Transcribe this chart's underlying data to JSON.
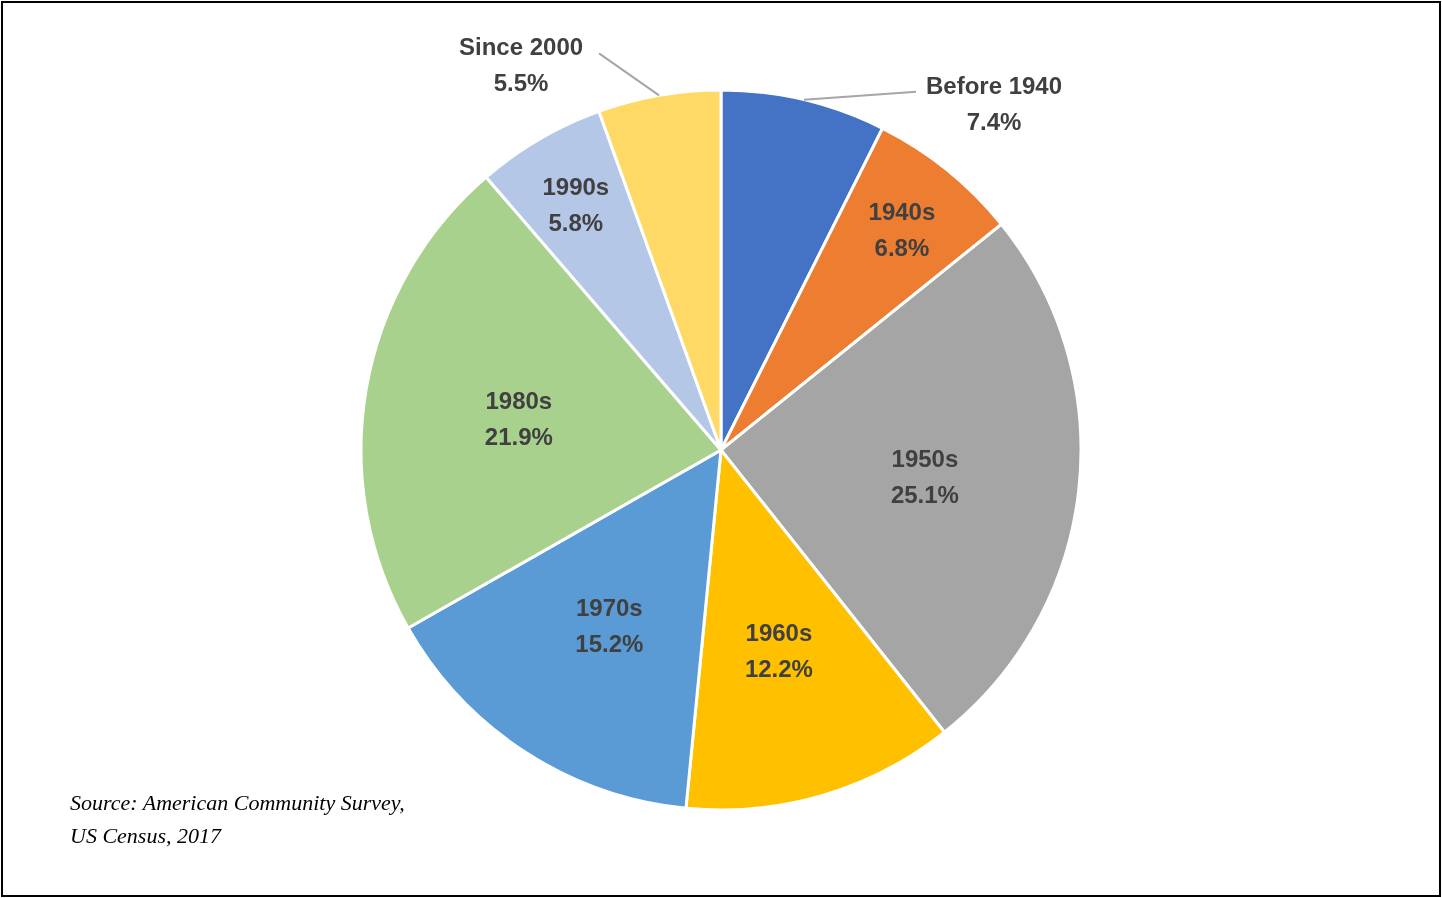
{
  "chart_data": {
    "type": "pie",
    "categories": [
      "Before 1940",
      "1940s",
      "1950s",
      "1960s",
      "1970s",
      "1980s",
      "1990s",
      "Since 2000"
    ],
    "values": [
      7.4,
      6.8,
      25.1,
      12.2,
      15.2,
      21.9,
      5.8,
      5.5
    ],
    "value_labels": [
      "7.4%",
      "6.8%",
      "25.1%",
      "12.2%",
      "15.2%",
      "21.9%",
      "5.8%",
      "5.5%"
    ],
    "colors": [
      "#4472c4",
      "#ed7d31",
      "#a5a5a5",
      "#ffc000",
      "#5b9bd5",
      "#a9d18e",
      "#b4c7e7",
      "#ffd966"
    ],
    "annotations": [
      "Source: American Community Survey, US Census, 2017"
    ]
  }
}
